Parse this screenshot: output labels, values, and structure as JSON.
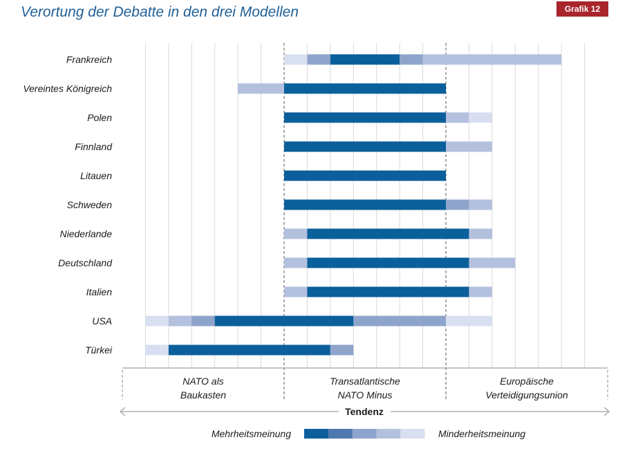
{
  "title": "Verortung der Debatte in den drei Modellen",
  "badge": "Grafik 12",
  "chart_data": {
    "type": "bar",
    "orientation": "horizontal-ranges",
    "units": "grid columns (0-20)",
    "xlim": [
      0,
      21
    ],
    "models": [
      {
        "line1": "NATO als",
        "line2": "Baukasten",
        "range": [
          0,
          7
        ]
      },
      {
        "line1": "Transatlantische",
        "line2": "NATO Minus",
        "range": [
          7,
          14
        ]
      },
      {
        "line1": "Europäische",
        "line2": "Verteidigungsunion",
        "range": [
          14,
          21
        ]
      }
    ],
    "model_boundaries": [
      7,
      14
    ],
    "axis_label": "Tendenz",
    "legend": {
      "left": "Mehrheitsmeinung",
      "right": "Minderheitsmeinung",
      "levels": [
        1,
        2,
        3,
        4,
        5
      ]
    },
    "level_colors": [
      "#0b5f9b",
      "#4f79ad",
      "#8ea4cb",
      "#b3c0de",
      "#d8dff0"
    ],
    "countries": [
      {
        "name": "Frankreich",
        "segments": [
          [
            7,
            8,
            5
          ],
          [
            8,
            9,
            3
          ],
          [
            9,
            12,
            1
          ],
          [
            12,
            13,
            3
          ],
          [
            13,
            19,
            4
          ]
        ]
      },
      {
        "name": "Vereintes Königreich",
        "segments": [
          [
            5,
            7,
            4
          ],
          [
            7,
            14,
            1
          ]
        ]
      },
      {
        "name": "Polen",
        "segments": [
          [
            7,
            14,
            1
          ],
          [
            14,
            15,
            4
          ],
          [
            15,
            16,
            5
          ]
        ]
      },
      {
        "name": "Finnland",
        "segments": [
          [
            7,
            14,
            1
          ],
          [
            14,
            16,
            4
          ]
        ]
      },
      {
        "name": "Litauen",
        "segments": [
          [
            7,
            14,
            1
          ]
        ]
      },
      {
        "name": "Schweden",
        "segments": [
          [
            7,
            14,
            1
          ],
          [
            14,
            15,
            3
          ],
          [
            15,
            16,
            4
          ]
        ]
      },
      {
        "name": "Niederlande",
        "segments": [
          [
            7,
            8,
            4
          ],
          [
            8,
            15,
            1
          ],
          [
            15,
            16,
            4
          ]
        ]
      },
      {
        "name": "Deutschland",
        "segments": [
          [
            7,
            8,
            4
          ],
          [
            8,
            15,
            1
          ],
          [
            15,
            17,
            4
          ]
        ]
      },
      {
        "name": "Italien",
        "segments": [
          [
            7,
            8,
            4
          ],
          [
            8,
            15,
            1
          ],
          [
            15,
            16,
            4
          ]
        ]
      },
      {
        "name": "USA",
        "segments": [
          [
            1,
            2,
            5
          ],
          [
            2,
            3,
            4
          ],
          [
            3,
            4,
            3
          ],
          [
            4,
            10,
            1
          ],
          [
            10,
            14,
            3
          ],
          [
            14,
            16,
            5
          ]
        ]
      },
      {
        "name": "Türkei",
        "segments": [
          [
            1,
            2,
            5
          ],
          [
            2,
            9,
            1
          ],
          [
            9,
            10,
            3
          ]
        ]
      }
    ]
  }
}
